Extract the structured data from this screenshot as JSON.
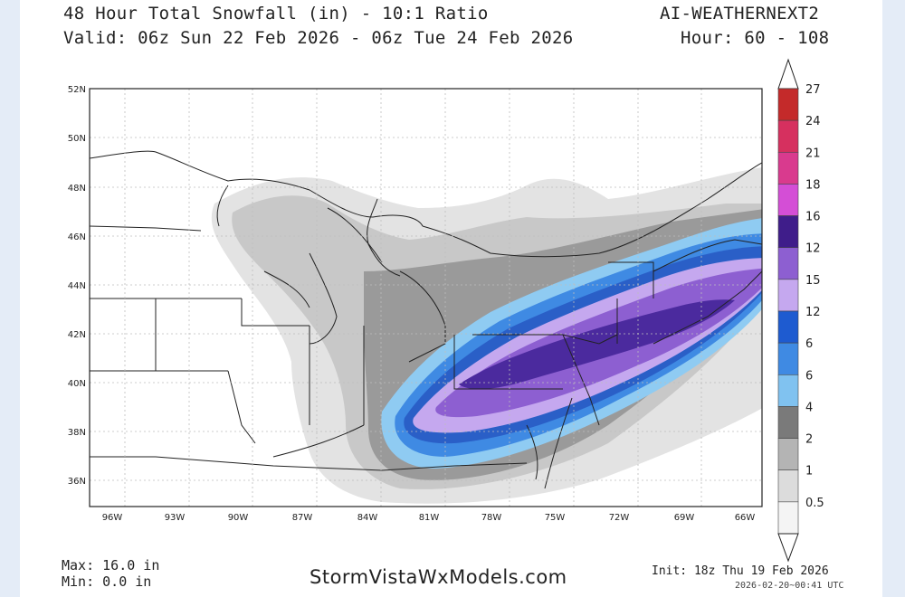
{
  "header": {
    "title": "48 Hour Total Snowfall (in) - 10:1 Ratio",
    "model": "AI-WEATHERNEXT2",
    "valid": "Valid: 06z Sun 22 Feb 2026 - 06z Tue 24 Feb 2026",
    "hours": "Hour: 60 - 108"
  },
  "map": {
    "lat_labels": [
      "52N",
      "50N",
      "48N",
      "46N",
      "44N",
      "42N",
      "40N",
      "38N",
      "36N"
    ],
    "lon_labels": [
      "96W",
      "93W",
      "90W",
      "87W",
      "84W",
      "81W",
      "78W",
      "75W",
      "72W",
      "69W",
      "66W"
    ]
  },
  "legend": {
    "labels": [
      "27",
      "24",
      "21",
      "18",
      "16",
      "12",
      "15",
      "12",
      "6",
      "6",
      "4",
      "2",
      "1",
      "0.5"
    ],
    "colors": [
      "#c42a2a",
      "#d6305f",
      "#d93a8e",
      "#d44ed6",
      "#3f1d8a",
      "#8d5fd1",
      "#c5a8ef",
      "#1e5bd0",
      "#3f8ae3",
      "#80c2f0",
      "#7a7a7a",
      "#b4b4b4",
      "#dcdcdc",
      "#f4f4f4"
    ]
  },
  "footer": {
    "max": "Max: 16.0 in",
    "min": "Min: 0.0 in",
    "brand": "StormVistaWxModels.com",
    "init": "Init: 18z Thu 19 Feb 2026",
    "stamp": "2026-02-20~00:41 UTC"
  }
}
